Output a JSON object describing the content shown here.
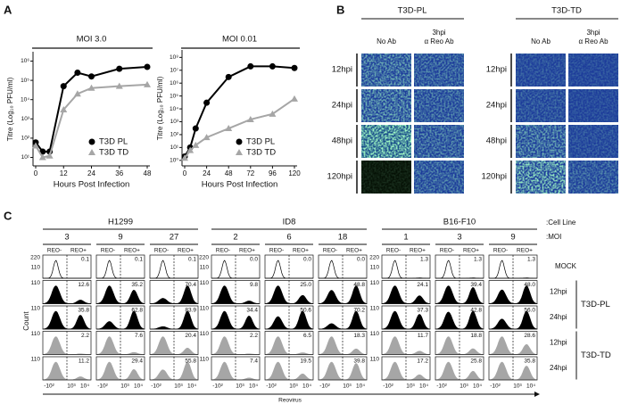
{
  "panel_labels": [
    "A",
    "B",
    "C"
  ],
  "chart_data": [
    {
      "type": "line",
      "title": "MOI 3.0",
      "x_label": "Hours Post Infection",
      "y_label": "Titre (Log₁₀ PFU/ml)",
      "x": [
        0,
        3,
        6,
        12,
        18,
        24,
        36,
        48
      ],
      "xlim": [
        0,
        48
      ],
      "xticks": [
        0,
        12,
        24,
        36,
        48
      ],
      "y_log": true,
      "ylim": [
        5,
        2000000
      ],
      "yticks": [
        {
          "value": 10,
          "label": "10¹"
        },
        {
          "value": 100,
          "label": "10²"
        },
        {
          "value": 1000,
          "label": "10³"
        },
        {
          "value": 10000,
          "label": "10⁴"
        },
        {
          "value": 100000,
          "label": "10⁵"
        },
        {
          "value": 1000000,
          "label": "10⁶"
        }
      ],
      "legend": "lower right",
      "series": [
        {
          "name": "T3D PL",
          "color": "#000000",
          "marker": "circle",
          "values": [
            60,
            20,
            20,
            50000,
            250000,
            160000,
            400000,
            500000
          ]
        },
        {
          "name": "T3D TD",
          "color": "#a6a6a6",
          "marker": "triangle",
          "values": [
            40,
            10,
            12,
            3000,
            20000,
            40000,
            50000,
            60000
          ]
        }
      ]
    },
    {
      "type": "line",
      "title": "MOI 0.01",
      "x_label": "Hours Post Infection",
      "y_label": "Titre (Log₁₀ PFU/ml)",
      "x": [
        0,
        6,
        12,
        24,
        48,
        72,
        96,
        120
      ],
      "xlim": [
        0,
        120
      ],
      "xticks": [
        0,
        24,
        48,
        72,
        96,
        120
      ],
      "y_log": true,
      "ylim": [
        0.6,
        200000000
      ],
      "yticks": [
        {
          "value": 1,
          "label": "10⁰"
        },
        {
          "value": 10,
          "label": "10¹"
        },
        {
          "value": 100,
          "label": "10²"
        },
        {
          "value": 1000,
          "label": "10³"
        },
        {
          "value": 10000,
          "label": "10⁴"
        },
        {
          "value": 100000,
          "label": "10⁵"
        },
        {
          "value": 1000000,
          "label": "10⁶"
        },
        {
          "value": 10000000,
          "label": "10⁷"
        },
        {
          "value": 100000000,
          "label": "10⁸"
        }
      ],
      "legend": "lower right",
      "series": [
        {
          "name": "T3D PL",
          "color": "#000000",
          "marker": "circle",
          "values": [
            2,
            10,
            300,
            30000,
            3000000,
            20000000,
            20000000,
            15000000
          ]
        },
        {
          "name": "T3D TD",
          "color": "#a6a6a6",
          "marker": "triangle",
          "values": [
            1.5,
            6,
            15,
            60,
            300,
            1500,
            4000,
            60000
          ]
        }
      ]
    }
  ],
  "panel_b": {
    "groups": [
      "T3D-PL",
      "T3D-TD"
    ],
    "columns": [
      [
        "No Ab"
      ],
      [
        "3hpi",
        "α Reo Ab"
      ]
    ],
    "rows": [
      "12hpi",
      "24hpi",
      "48hpi",
      "120hpi"
    ]
  },
  "panel_c": {
    "cell_line_title": ":Cell Line",
    "moi_title": ":MOI",
    "gates": [
      "REO-",
      "REO+"
    ],
    "rows": [
      "MOCK",
      "12hpi",
      "24hpi",
      "12hpi",
      "24hpi"
    ],
    "treatments": [
      "T3D-PL",
      "T3D-TD"
    ],
    "y_ticks": [
      [
        "220",
        "110"
      ],
      [
        "110"
      ],
      [
        "110"
      ],
      [
        "110"
      ],
      [
        "110"
      ]
    ],
    "x_ticks": [
      "-10²",
      "10³",
      "10⁴"
    ],
    "y_axis_label": "Count",
    "x_axis_label": "Reovirus",
    "groups": [
      {
        "cell_line": "H1299",
        "columns": [
          {
            "moi": "3",
            "percents": [
              "0.1",
              "12.6",
              "35.8",
              "2.2",
              "11.2"
            ]
          },
          {
            "moi": "9",
            "percents": [
              "0.1",
              "35.2",
              "62.8",
              "7.6",
              "29.4"
            ]
          },
          {
            "moi": "27",
            "percents": [
              "0.1",
              "70.4",
              "83.9",
              "20.4",
              "55.8"
            ]
          }
        ]
      },
      {
        "cell_line": "ID8",
        "columns": [
          {
            "moi": "2",
            "percents": [
              "0.0",
              "9.8",
              "34.4",
              "2.2",
              "7.4"
            ]
          },
          {
            "moi": "6",
            "percents": [
              "0.0",
              "25.0",
              "50.6",
              "6.5",
              "19.5"
            ]
          },
          {
            "moi": "18",
            "percents": [
              "0.0",
              "48.8",
              "70.2",
              "18.3",
              "39.8"
            ]
          }
        ]
      },
      {
        "cell_line": "B16-F10",
        "columns": [
          {
            "moi": "1",
            "percents": [
              "1.3",
              "24.1",
              "37.3",
              "11.7",
              "17.2"
            ]
          },
          {
            "moi": "3",
            "percents": [
              "1.3",
              "39.4",
              "42.8",
              "18.8",
              "25.8"
            ]
          },
          {
            "moi": "9",
            "percents": [
              "1.3",
              "48.0",
              "56.0",
              "28.6",
              "35.8"
            ]
          }
        ]
      }
    ]
  }
}
